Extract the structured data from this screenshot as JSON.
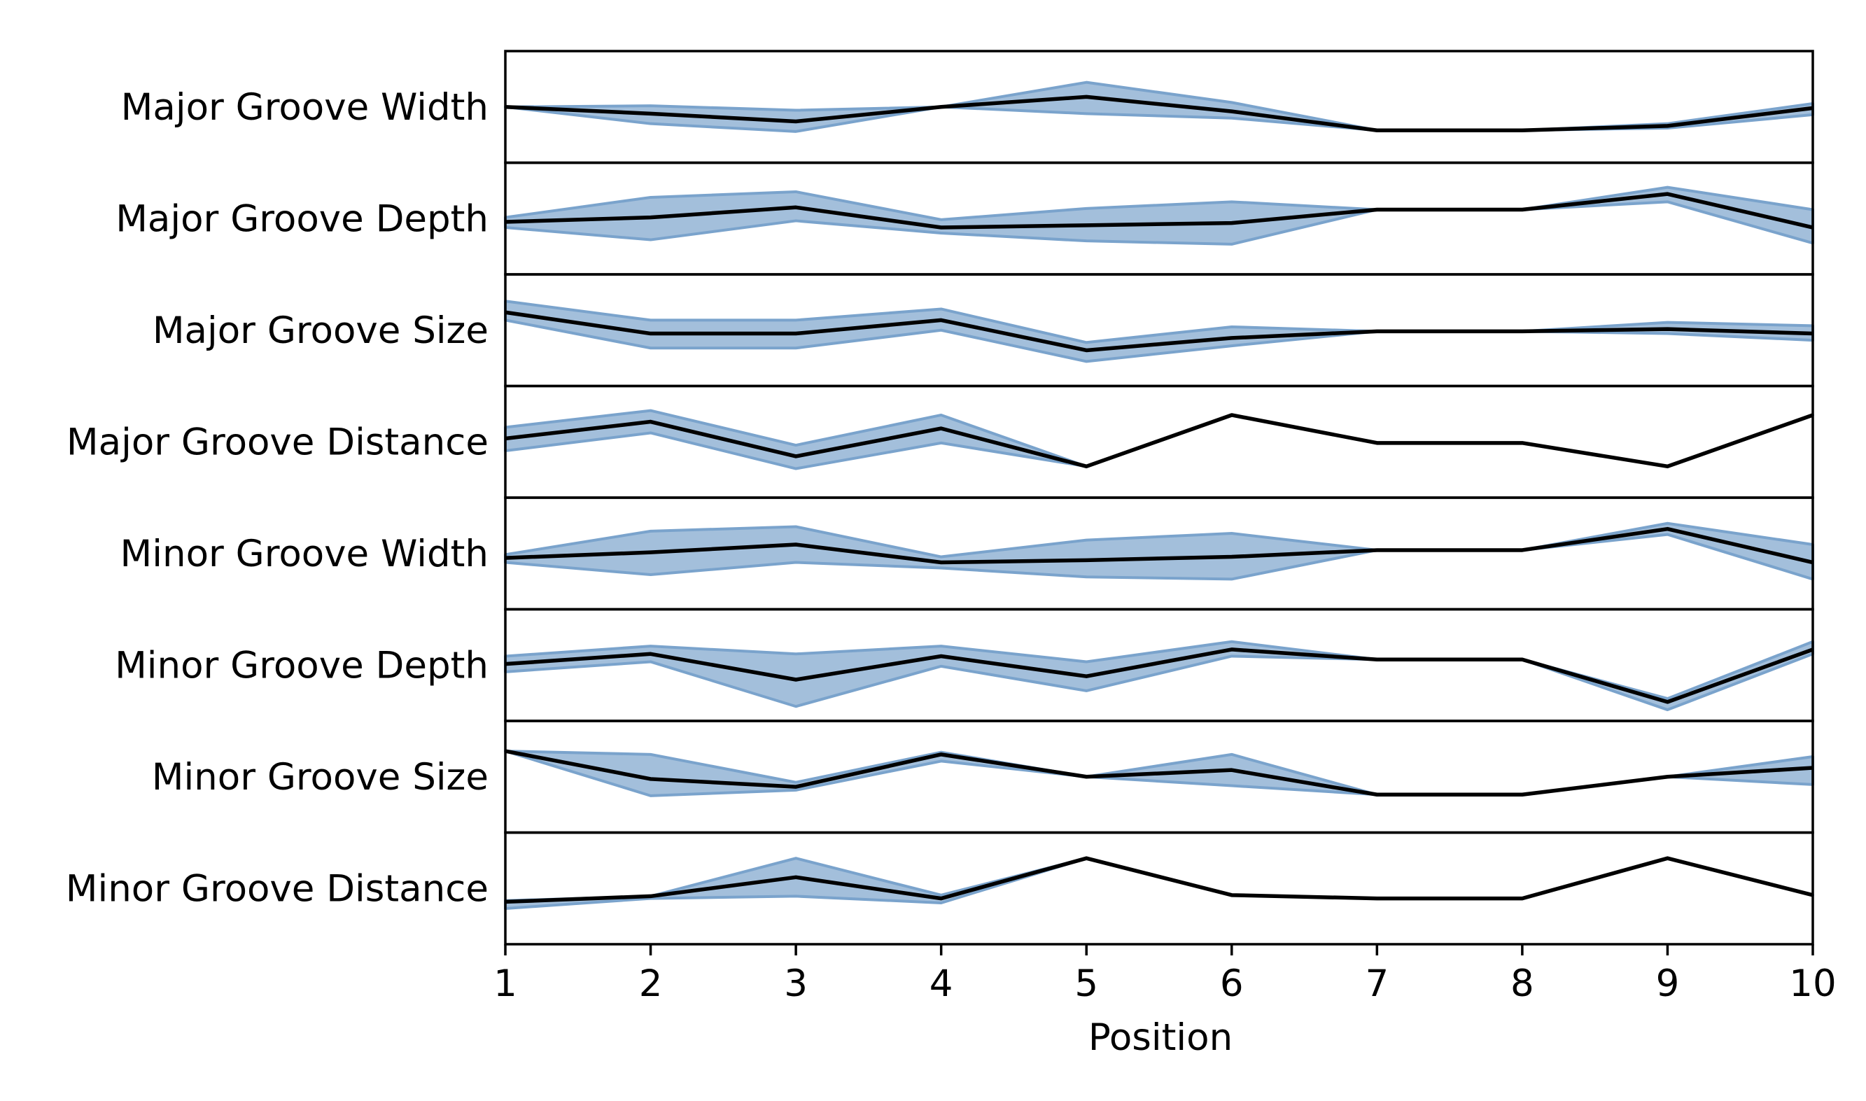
{
  "colors": {
    "band_fill": "#a3bfdb",
    "band_edge": "#7aa3cc",
    "line": "#000000",
    "frame": "#000000"
  },
  "chart_data": {
    "type": "line",
    "layout": "stacked-rows",
    "xlabel": "Position",
    "x": [
      1,
      2,
      3,
      4,
      5,
      6,
      7,
      8,
      9,
      10
    ],
    "xlim": [
      1,
      10
    ],
    "grid": false,
    "note": "Each row: mean value (black line) with a shaded range band; values normalized to 0-1 within each row",
    "series": [
      {
        "name": "Major Groove Width",
        "values": [
          0.5,
          0.44,
          0.37,
          0.5,
          0.59,
          0.46,
          0.29,
          0.29,
          0.33,
          0.49
        ],
        "lower": [
          0.5,
          0.35,
          0.28,
          0.5,
          0.44,
          0.4,
          0.29,
          0.29,
          0.31,
          0.43
        ],
        "upper": [
          0.5,
          0.51,
          0.47,
          0.5,
          0.72,
          0.54,
          0.29,
          0.29,
          0.35,
          0.53
        ]
      },
      {
        "name": "Major Groove Depth",
        "values": [
          0.47,
          0.51,
          0.6,
          0.42,
          0.44,
          0.46,
          0.58,
          0.58,
          0.72,
          0.42
        ],
        "lower": [
          0.42,
          0.31,
          0.48,
          0.37,
          0.3,
          0.27,
          0.58,
          0.58,
          0.65,
          0.28
        ],
        "upper": [
          0.51,
          0.69,
          0.74,
          0.49,
          0.59,
          0.65,
          0.58,
          0.58,
          0.78,
          0.58
        ]
      },
      {
        "name": "Major Groove Size",
        "values": [
          0.66,
          0.47,
          0.47,
          0.59,
          0.32,
          0.43,
          0.49,
          0.49,
          0.51,
          0.47
        ],
        "lower": [
          0.59,
          0.34,
          0.34,
          0.5,
          0.22,
          0.36,
          0.49,
          0.49,
          0.47,
          0.41
        ],
        "upper": [
          0.76,
          0.59,
          0.59,
          0.69,
          0.39,
          0.53,
          0.49,
          0.49,
          0.57,
          0.54
        ]
      },
      {
        "name": "Major Groove Distance",
        "values": [
          0.53,
          0.68,
          0.37,
          0.62,
          0.28,
          0.74,
          0.49,
          0.49,
          0.28,
          0.74
        ],
        "lower": [
          0.42,
          0.58,
          0.26,
          0.49,
          0.28,
          0.74,
          0.49,
          0.49,
          0.28,
          0.74
        ],
        "upper": [
          0.63,
          0.78,
          0.47,
          0.74,
          0.28,
          0.74,
          0.49,
          0.49,
          0.28,
          0.74
        ]
      },
      {
        "name": "Minor Groove Width",
        "values": [
          0.46,
          0.51,
          0.58,
          0.42,
          0.44,
          0.47,
          0.53,
          0.53,
          0.72,
          0.42
        ],
        "lower": [
          0.42,
          0.31,
          0.42,
          0.37,
          0.29,
          0.27,
          0.53,
          0.53,
          0.67,
          0.27
        ],
        "upper": [
          0.49,
          0.7,
          0.74,
          0.47,
          0.62,
          0.68,
          0.53,
          0.53,
          0.77,
          0.58
        ]
      },
      {
        "name": "Minor Groove Depth",
        "values": [
          0.51,
          0.6,
          0.37,
          0.58,
          0.4,
          0.64,
          0.55,
          0.55,
          0.17,
          0.64
        ],
        "lower": [
          0.44,
          0.53,
          0.13,
          0.49,
          0.27,
          0.58,
          0.55,
          0.55,
          0.1,
          0.6
        ],
        "upper": [
          0.58,
          0.67,
          0.6,
          0.67,
          0.53,
          0.71,
          0.55,
          0.55,
          0.2,
          0.71
        ]
      },
      {
        "name": "Minor Groove Size",
        "values": [
          0.73,
          0.48,
          0.41,
          0.7,
          0.5,
          0.56,
          0.34,
          0.34,
          0.5,
          0.58
        ],
        "lower": [
          0.73,
          0.33,
          0.38,
          0.64,
          0.5,
          0.42,
          0.34,
          0.34,
          0.5,
          0.43
        ],
        "upper": [
          0.73,
          0.7,
          0.45,
          0.72,
          0.5,
          0.7,
          0.34,
          0.34,
          0.5,
          0.68
        ]
      },
      {
        "name": "Minor Groove Distance",
        "values": [
          0.38,
          0.43,
          0.6,
          0.41,
          0.77,
          0.44,
          0.41,
          0.41,
          0.77,
          0.44
        ],
        "lower": [
          0.32,
          0.41,
          0.43,
          0.37,
          0.77,
          0.44,
          0.41,
          0.41,
          0.77,
          0.44
        ],
        "upper": [
          0.39,
          0.43,
          0.77,
          0.44,
          0.77,
          0.44,
          0.41,
          0.41,
          0.77,
          0.44
        ]
      }
    ]
  }
}
